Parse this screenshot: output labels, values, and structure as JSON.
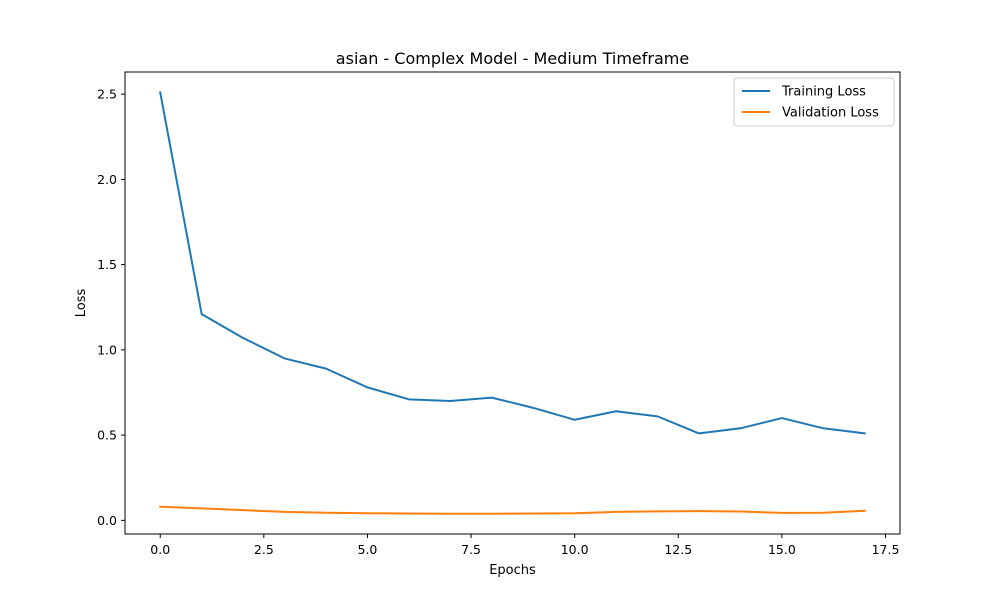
{
  "chart_data": {
    "type": "line",
    "title": "asian - Complex Model - Medium Timeframe",
    "xlabel": "Epochs",
    "ylabel": "Loss",
    "xlim": [
      -0.85,
      17.85
    ],
    "ylim": [
      -0.08,
      2.63
    ],
    "x_ticks": [
      0.0,
      2.5,
      5.0,
      7.5,
      10.0,
      12.5,
      15.0,
      17.5
    ],
    "x_tick_labels": [
      "0.0",
      "2.5",
      "5.0",
      "7.5",
      "10.0",
      "12.5",
      "15.0",
      "17.5"
    ],
    "y_ticks": [
      0.0,
      0.5,
      1.0,
      1.5,
      2.0,
      2.5
    ],
    "y_tick_labels": [
      "0.0",
      "0.5",
      "1.0",
      "1.5",
      "2.0",
      "2.5"
    ],
    "grid": false,
    "legend_position": "top-right",
    "x": [
      0,
      1,
      2,
      3,
      4,
      5,
      6,
      7,
      8,
      9,
      10,
      11,
      12,
      13,
      14,
      15,
      16,
      17
    ],
    "series": [
      {
        "name": "Training Loss",
        "color": "#1f77b4",
        "values": [
          2.51,
          1.21,
          1.07,
          0.95,
          0.89,
          0.78,
          0.71,
          0.7,
          0.72,
          0.66,
          0.59,
          0.64,
          0.61,
          0.51,
          0.54,
          0.6,
          0.54,
          0.51
        ]
      },
      {
        "name": "Validation Loss",
        "color": "#ff7f0e",
        "values": [
          0.08,
          0.07,
          0.06,
          0.05,
          0.045,
          0.042,
          0.04,
          0.039,
          0.039,
          0.04,
          0.042,
          0.05,
          0.053,
          0.054,
          0.052,
          0.044,
          0.045,
          0.056
        ]
      }
    ]
  }
}
